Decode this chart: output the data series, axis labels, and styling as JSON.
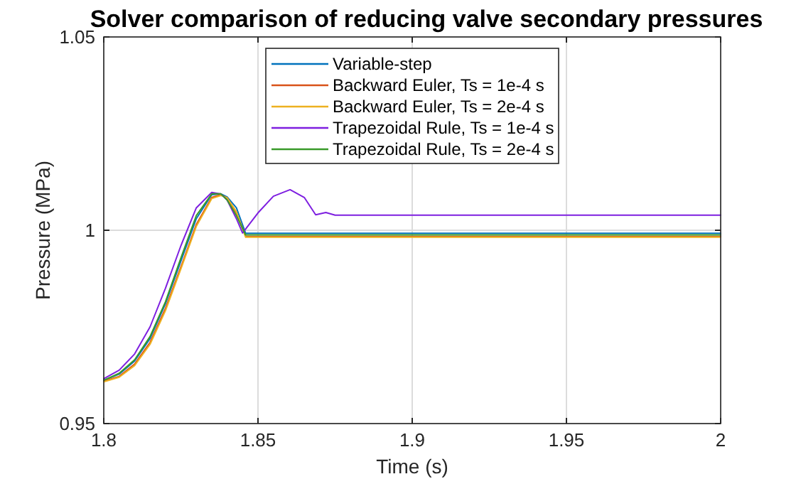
{
  "chart_data": {
    "type": "line",
    "title": "Solver comparison of reducing valve secondary pressures",
    "xlabel": "Time (s)",
    "ylabel": "Pressure (MPa)",
    "xlim": [
      1.8,
      2
    ],
    "xticks": [
      1.8,
      1.85,
      1.9,
      1.95,
      2
    ],
    "ylim": [
      0.95,
      1.05
    ],
    "yticks": [
      0.95,
      1,
      1.05
    ],
    "grid": true,
    "legend": "top",
    "line_style": "solid",
    "marker": "none",
    "series": [
      {
        "name": "Variable-step",
        "color": "#0072bd",
        "x": [
          1.8,
          1.805,
          1.81,
          1.815,
          1.82,
          1.825,
          1.83,
          1.835,
          1.838,
          1.84,
          1.843,
          1.846,
          2
        ],
        "values": [
          0.9612,
          0.9628,
          0.9662,
          0.972,
          0.981,
          0.992,
          1.003,
          1.0092,
          1.0094,
          1.0086,
          1.0058,
          0.9992,
          0.9992
        ]
      },
      {
        "name": "Backward Euler, Ts = 1e-4 s",
        "color": "#d95319",
        "x": [
          1.8,
          1.805,
          1.81,
          1.815,
          1.82,
          1.825,
          1.83,
          1.835,
          1.838,
          1.84,
          1.843,
          1.846,
          2
        ],
        "values": [
          0.961,
          0.9622,
          0.9654,
          0.971,
          0.9798,
          0.9905,
          1.0015,
          1.0085,
          1.0092,
          1.0083,
          1.0045,
          0.9984,
          0.9984
        ]
      },
      {
        "name": "Backward Euler, Ts = 2e-4 s",
        "color": "#edb120",
        "x": [
          1.8,
          1.805,
          1.81,
          1.815,
          1.82,
          1.825,
          1.83,
          1.835,
          1.838,
          1.84,
          1.843,
          1.846,
          2
        ],
        "values": [
          0.9608,
          0.962,
          0.965,
          0.9705,
          0.9792,
          0.99,
          1.001,
          1.0082,
          1.009,
          1.0084,
          1.0048,
          0.9982,
          0.9982
        ]
      },
      {
        "name": "Trapezoidal Rule, Ts = 1e-4 s",
        "color": "#7e1fe0",
        "x": [
          1.8,
          1.805,
          1.81,
          1.815,
          1.82,
          1.825,
          1.83,
          1.835,
          1.838,
          1.84,
          1.843,
          1.845,
          1.85,
          1.855,
          1.8604,
          1.865,
          1.8687,
          1.872,
          1.875,
          2
        ],
        "values": [
          0.9616,
          0.9638,
          0.968,
          0.975,
          0.985,
          0.996,
          1.0058,
          1.0098,
          1.0094,
          1.0078,
          1.003,
          0.9993,
          1.0045,
          1.0088,
          1.0105,
          1.0085,
          1.004,
          1.0046,
          1.0039,
          1.0039
        ]
      },
      {
        "name": "Trapezoidal Rule, Ts = 2e-4 s",
        "color": "#3a9a2a",
        "x": [
          1.8,
          1.805,
          1.81,
          1.815,
          1.82,
          1.825,
          1.83,
          1.835,
          1.838,
          1.84,
          1.843,
          1.846,
          2
        ],
        "values": [
          0.9612,
          0.963,
          0.9665,
          0.9725,
          0.9815,
          0.9928,
          1.0038,
          1.0094,
          1.0094,
          1.0078,
          1.0038,
          0.9988,
          0.9988
        ]
      }
    ]
  }
}
